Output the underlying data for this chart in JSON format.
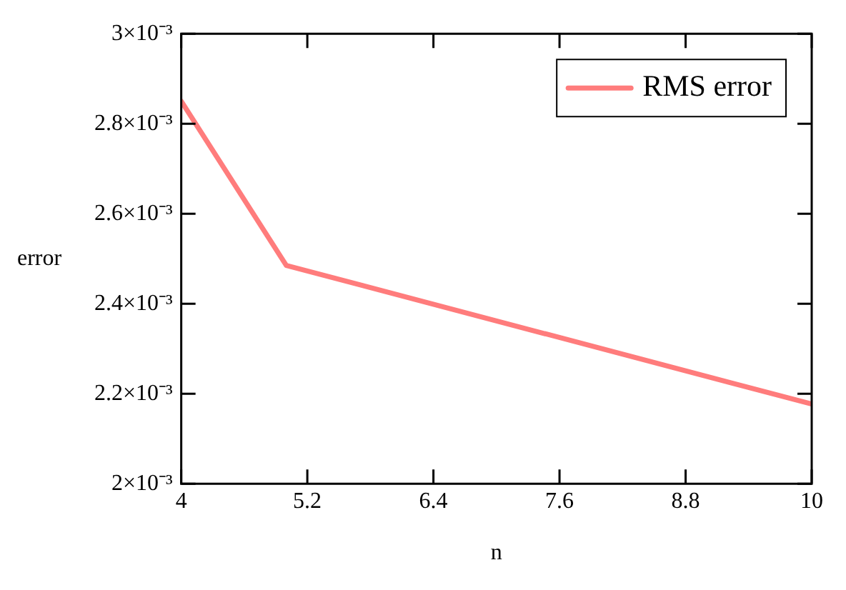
{
  "chart_data": {
    "type": "line",
    "xlabel": "n",
    "ylabel": "error",
    "x": [
      4,
      5,
      10
    ],
    "series": [
      {
        "name": "RMS error",
        "color": "#ff7c7c",
        "values": [
          0.00285,
          0.002485,
          0.002177
        ]
      }
    ],
    "xlim": [
      4,
      10
    ],
    "xticks": [
      4,
      5.2,
      6.4,
      7.6,
      8.8,
      10
    ],
    "ylim": [
      0.002,
      0.003
    ],
    "yticks": [
      {
        "value": 0.002,
        "label": "2×10⁻³"
      },
      {
        "value": 0.0022,
        "label": "2.2×10⁻³"
      },
      {
        "value": 0.0024,
        "label": "2.4×10⁻³"
      },
      {
        "value": 0.0026,
        "label": "2.6×10⁻³"
      },
      {
        "value": 0.0028,
        "label": "2.8×10⁻³"
      },
      {
        "value": 0.003,
        "label": "3×10⁻³"
      }
    ],
    "grid": false,
    "legend": "top right",
    "marker": "none",
    "line_style": "solid"
  }
}
